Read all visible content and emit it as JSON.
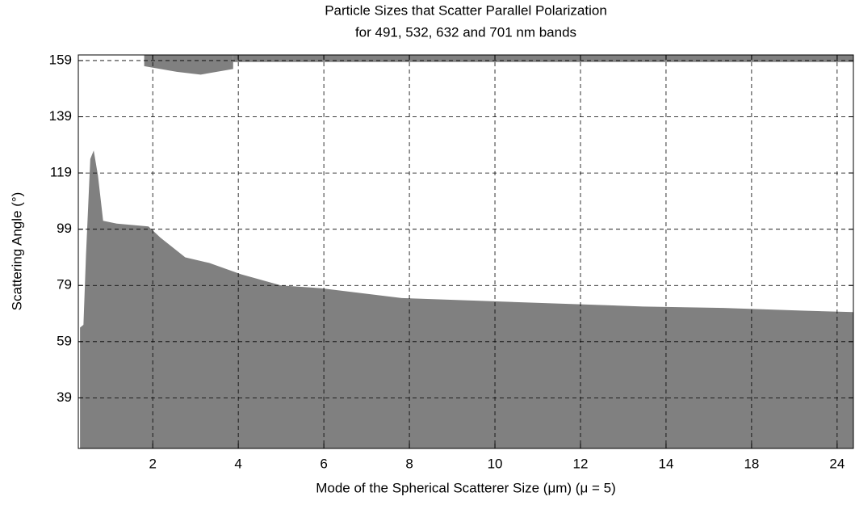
{
  "chart_data": {
    "type": "area",
    "title": "Particle Sizes that Scatter Parallel Polarization",
    "subtitle": "for 491, 532, 632 and 701 nm bands",
    "x_label": "Mode of the Spherical Scatterer Size (μm)  (μ = 5)",
    "y_label": "Scattering Angle (°)",
    "xlim": [
      0.13,
      9.19
    ],
    "xticks": [
      {
        "value": 1,
        "label": "2"
      },
      {
        "value": 2,
        "label": "4"
      },
      {
        "value": 3,
        "label": "6"
      },
      {
        "value": 4,
        "label": "8"
      },
      {
        "value": 5,
        "label": "10"
      },
      {
        "value": 6,
        "label": "12"
      },
      {
        "value": 7,
        "label": "14"
      },
      {
        "value": 8,
        "label": "18"
      },
      {
        "value": 9,
        "label": "24"
      }
    ],
    "ylim": [
      21,
      161
    ],
    "yticks": [
      39,
      59,
      79,
      99,
      119,
      139,
      159
    ],
    "grid": true,
    "series": [
      {
        "color": "#808080",
        "x": [
          0.15,
          0.19,
          0.22,
          0.27,
          0.31,
          0.36,
          0.42,
          0.58,
          0.95,
          1.09,
          1.38,
          1.66,
          2.03,
          2.5,
          2.97,
          3.91,
          4.85,
          5.79,
          6.73,
          7.67,
          8.61,
          9.19
        ],
        "values": [
          64,
          65,
          90,
          124,
          127,
          118,
          102,
          101,
          100,
          96,
          89,
          87,
          83,
          79,
          78,
          74.5,
          73.5,
          72.5,
          71.5,
          71,
          70,
          69.5
        ]
      },
      {
        "color": "#808080",
        "x": [
          0.9,
          1.28,
          1.56,
          1.94
        ],
        "values": [
          161,
          161,
          161,
          161
        ],
        "lower": [
          157,
          155,
          154,
          156
        ]
      },
      {
        "color": "#808080",
        "x": [
          1.94,
          9.19
        ],
        "values": [
          161,
          161
        ],
        "lower": [
          158.5,
          158.5
        ]
      }
    ]
  }
}
